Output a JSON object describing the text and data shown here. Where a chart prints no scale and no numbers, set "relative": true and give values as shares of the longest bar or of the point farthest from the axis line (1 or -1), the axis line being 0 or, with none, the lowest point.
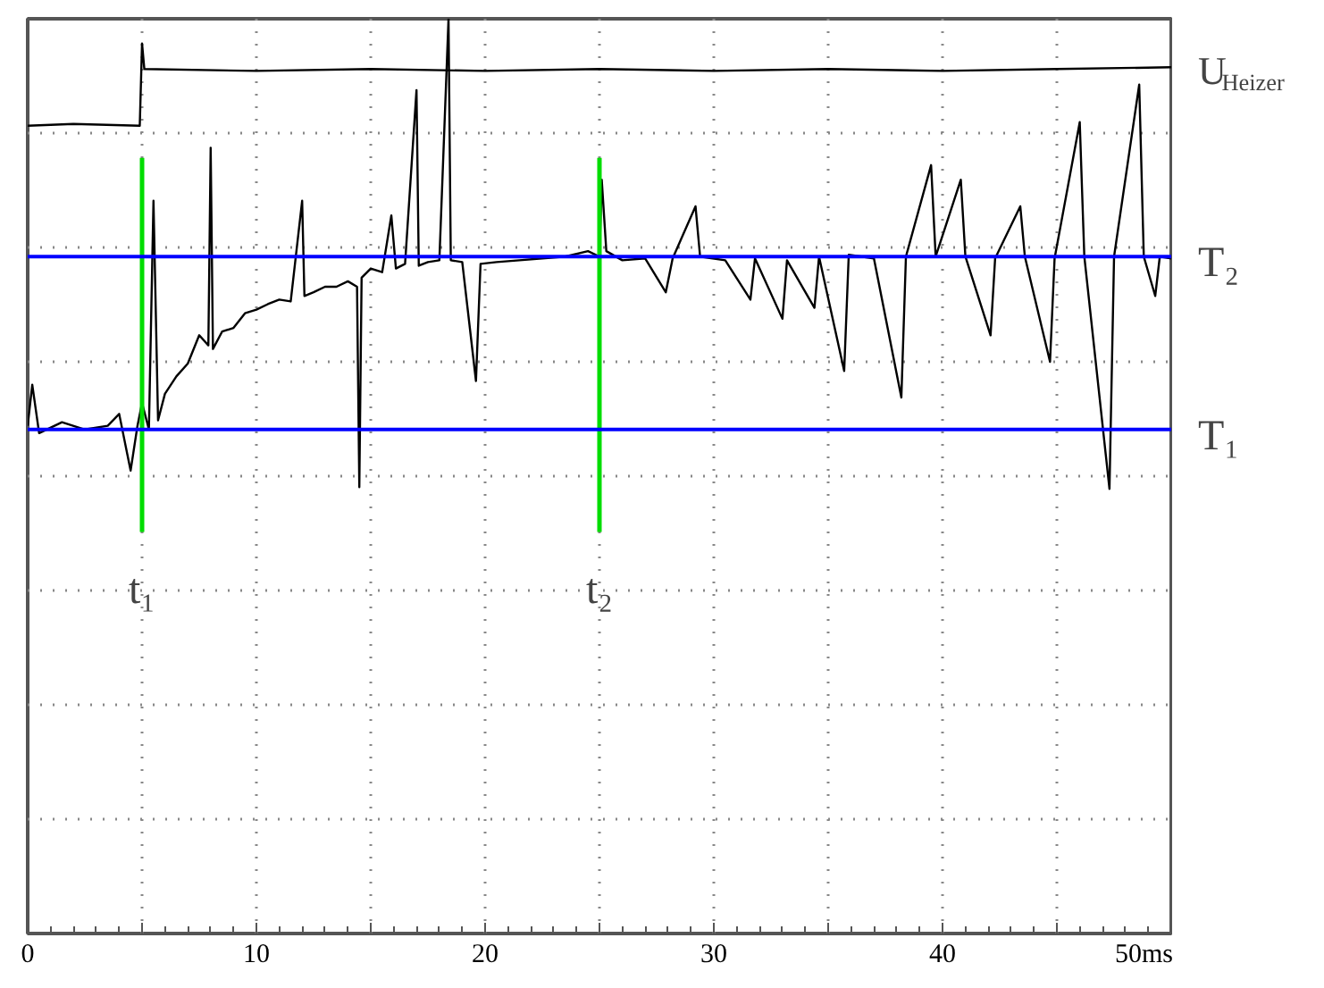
{
  "chart_data": {
    "type": "line",
    "relative": true,
    "xlim": [
      0,
      50
    ],
    "xticks": [
      0,
      {
        "value": 5,
        "label": null
      },
      10,
      {
        "value": 15,
        "label": null
      },
      20,
      {
        "value": 25,
        "label": null
      },
      30,
      {
        "value": 35,
        "label": null
      },
      40,
      {
        "value": 45,
        "label": null
      },
      {
        "value": 50,
        "label": "50ms"
      }
    ],
    "grid": true,
    "marker": "none",
    "line_style": "solid",
    "series": [
      {
        "name": "U$_{Heizer}$",
        "color": "#000000",
        "x": [
          0,
          2,
          4.9,
          5.0,
          5.1,
          10,
          15,
          20,
          25,
          30,
          35,
          40,
          45,
          50
        ],
        "values": [
          0.883,
          0.885,
          0.883,
          0.973,
          0.945,
          0.943,
          0.945,
          0.943,
          0.945,
          0.943,
          0.945,
          0.943,
          0.945,
          0.947
        ]
      },
      {
        "color": "#000000",
        "x": [
          0,
          0.2,
          0.5,
          1.5,
          2.5,
          3.5,
          4.0,
          4.5,
          4.8,
          5.0,
          5.3,
          5.5,
          5.7,
          6.0,
          6.5,
          7.0,
          7.5,
          7.9,
          8.0,
          8.1,
          8.5,
          9.0,
          9.5,
          10.0,
          10.5,
          11.0,
          11.5,
          12.0,
          12.1,
          12.5,
          13.0,
          13.5,
          14.0,
          14.4,
          14.5,
          14.6,
          15.0,
          15.5,
          15.9,
          16.1,
          16.5,
          17.0,
          17.1,
          17.5,
          18.0,
          18.4,
          18.5,
          19.0,
          19.6,
          19.8,
          20.5,
          21.5,
          22.5,
          23.5,
          24.5,
          25.0,
          25.1,
          25.3,
          26.0,
          27.0,
          27.9,
          28.2,
          29.2,
          29.4,
          30.5,
          31.6,
          31.8,
          33.0,
          33.2,
          34.4,
          34.6,
          35.7,
          35.9,
          37.0,
          38.2,
          38.4,
          39.5,
          39.7,
          40.8,
          41.0,
          42.1,
          42.3,
          43.4,
          43.6,
          44.7,
          44.9,
          46.0,
          46.2,
          47.3,
          47.5,
          48.6,
          48.8,
          49.3,
          49.5,
          50.0
        ],
        "values": [
          0.555,
          0.6,
          0.547,
          0.559,
          0.551,
          0.555,
          0.568,
          0.506,
          0.555,
          0.58,
          0.551,
          0.801,
          0.561,
          0.59,
          0.609,
          0.623,
          0.654,
          0.643,
          0.859,
          0.639,
          0.658,
          0.662,
          0.678,
          0.682,
          0.688,
          0.693,
          0.691,
          0.801,
          0.697,
          0.701,
          0.707,
          0.707,
          0.713,
          0.707,
          0.488,
          0.717,
          0.727,
          0.723,
          0.785,
          0.727,
          0.732,
          0.922,
          0.73,
          0.734,
          0.736,
          1.0,
          0.736,
          0.734,
          0.604,
          0.732,
          0.734,
          0.736,
          0.738,
          0.74,
          0.746,
          0.74,
          0.824,
          0.746,
          0.736,
          0.738,
          0.701,
          0.738,
          0.795,
          0.74,
          0.736,
          0.693,
          0.738,
          0.672,
          0.736,
          0.684,
          0.74,
          0.615,
          0.742,
          0.738,
          0.586,
          0.74,
          0.84,
          0.74,
          0.824,
          0.74,
          0.654,
          0.738,
          0.795,
          0.74,
          0.625,
          0.738,
          0.887,
          0.74,
          0.486,
          0.74,
          0.928,
          0.74,
          0.697,
          0.74,
          0.738
        ]
      }
    ],
    "ref_lines": [
      {
        "axis": "y",
        "value": 0.74,
        "label": "T₂",
        "color": "#0000ff"
      },
      {
        "axis": "y",
        "value": 0.551,
        "label": "T₁",
        "color": "#0000ff"
      },
      {
        "axis": "x",
        "value": 5,
        "label": "t₁",
        "color": "#00dd00"
      },
      {
        "axis": "x",
        "value": 25,
        "label": "t₂",
        "color": "#00dd00"
      }
    ]
  }
}
